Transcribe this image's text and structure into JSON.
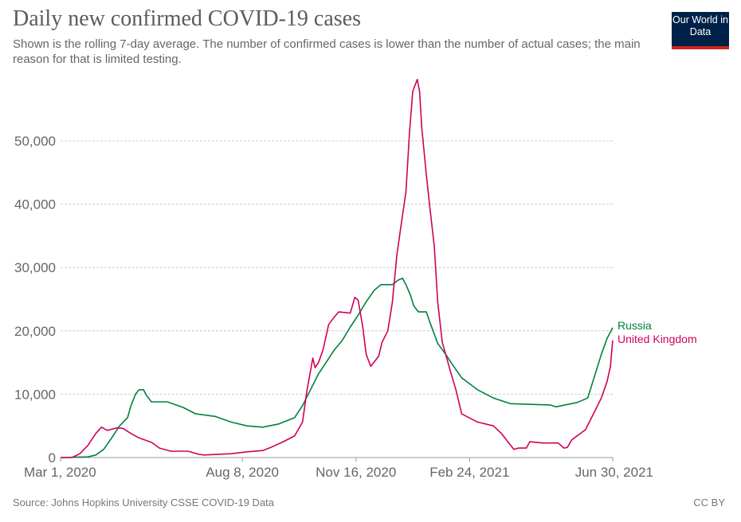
{
  "header": {
    "title": "Daily new confirmed COVID-19 cases",
    "subtitle": "Shown is the rolling 7-day average. The number of confirmed cases is lower than the number of actual cases; the main reason for that is limited testing.",
    "logo_text": "Our World in Data"
  },
  "footer": {
    "source": "Source: Johns Hopkins University CSSE COVID-19 Data",
    "license": "CC BY"
  },
  "chart_data": {
    "type": "line",
    "title": "Daily new confirmed COVID-19 cases",
    "xlim": [
      "2020-03-01",
      "2021-06-30"
    ],
    "ylim": [
      0,
      60000
    ],
    "grid": true,
    "legend": "inline-right",
    "x_ticks": [
      {
        "date": "2020-03-01",
        "label": "Mar 1, 2020"
      },
      {
        "date": "2020-08-08",
        "label": "Aug 8, 2020"
      },
      {
        "date": "2020-11-16",
        "label": "Nov 16, 2020"
      },
      {
        "date": "2021-02-24",
        "label": "Feb 24, 2021"
      },
      {
        "date": "2021-06-30",
        "label": "Jun 30, 2021"
      }
    ],
    "y_ticks": [
      {
        "value": 0,
        "label": "0"
      },
      {
        "value": 10000,
        "label": "10,000"
      },
      {
        "value": 20000,
        "label": "20,000"
      },
      {
        "value": 30000,
        "label": "30,000"
      },
      {
        "value": 40000,
        "label": "40,000"
      },
      {
        "value": 50000,
        "label": "50,000"
      }
    ],
    "series": [
      {
        "name": "Russia",
        "color": "#00813b",
        "points": [
          [
            "2020-03-01",
            0
          ],
          [
            "2020-03-25",
            100
          ],
          [
            "2020-04-01",
            400
          ],
          [
            "2020-04-08",
            1300
          ],
          [
            "2020-04-15",
            3100
          ],
          [
            "2020-04-22",
            5000
          ],
          [
            "2020-04-29",
            6300
          ],
          [
            "2020-05-02",
            8200
          ],
          [
            "2020-05-06",
            10000
          ],
          [
            "2020-05-09",
            10700
          ],
          [
            "2020-05-13",
            10700
          ],
          [
            "2020-05-16",
            9700
          ],
          [
            "2020-05-20",
            8800
          ],
          [
            "2020-06-03",
            8800
          ],
          [
            "2020-06-17",
            7900
          ],
          [
            "2020-06-28",
            6900
          ],
          [
            "2020-07-15",
            6500
          ],
          [
            "2020-07-29",
            5600
          ],
          [
            "2020-08-12",
            5000
          ],
          [
            "2020-08-26",
            4800
          ],
          [
            "2020-09-09",
            5300
          ],
          [
            "2020-09-23",
            6300
          ],
          [
            "2020-09-30",
            8200
          ],
          [
            "2020-10-07",
            10700
          ],
          [
            "2020-10-14",
            13200
          ],
          [
            "2020-10-21",
            15100
          ],
          [
            "2020-10-28",
            17000
          ],
          [
            "2020-11-04",
            18500
          ],
          [
            "2020-11-11",
            20600
          ],
          [
            "2020-11-18",
            22500
          ],
          [
            "2020-11-25",
            24600
          ],
          [
            "2020-12-02",
            26400
          ],
          [
            "2020-12-08",
            27300
          ],
          [
            "2020-12-18",
            27300
          ],
          [
            "2020-12-23",
            28000
          ],
          [
            "2020-12-27",
            28300
          ],
          [
            "2020-12-30",
            27300
          ],
          [
            "2021-01-03",
            25600
          ],
          [
            "2021-01-06",
            23900
          ],
          [
            "2021-01-10",
            23000
          ],
          [
            "2021-01-17",
            23000
          ],
          [
            "2021-01-20",
            21400
          ],
          [
            "2021-01-27",
            18000
          ],
          [
            "2021-02-03",
            16300
          ],
          [
            "2021-02-10",
            14400
          ],
          [
            "2021-02-17",
            12600
          ],
          [
            "2021-03-03",
            10700
          ],
          [
            "2021-03-17",
            9400
          ],
          [
            "2021-04-01",
            8500
          ],
          [
            "2021-05-06",
            8300
          ],
          [
            "2021-05-11",
            8000
          ],
          [
            "2021-05-30",
            8700
          ],
          [
            "2021-06-08",
            9400
          ],
          [
            "2021-06-15",
            13400
          ],
          [
            "2021-06-20",
            16300
          ],
          [
            "2021-06-25",
            18800
          ],
          [
            "2021-06-30",
            20500
          ]
        ]
      },
      {
        "name": "United Kingdom",
        "color": "#d0005a",
        "points": [
          [
            "2020-03-01",
            0
          ],
          [
            "2020-03-11",
            0
          ],
          [
            "2020-03-18",
            600
          ],
          [
            "2020-03-25",
            1900
          ],
          [
            "2020-04-01",
            3800
          ],
          [
            "2020-04-06",
            4800
          ],
          [
            "2020-04-11",
            4300
          ],
          [
            "2020-04-20",
            4700
          ],
          [
            "2020-04-25",
            4600
          ],
          [
            "2020-05-02",
            3800
          ],
          [
            "2020-05-09",
            3100
          ],
          [
            "2020-05-20",
            2400
          ],
          [
            "2020-05-27",
            1500
          ],
          [
            "2020-06-06",
            1000
          ],
          [
            "2020-06-21",
            1000
          ],
          [
            "2020-07-01",
            500
          ],
          [
            "2020-07-05",
            400
          ],
          [
            "2020-07-29",
            600
          ],
          [
            "2020-08-12",
            900
          ],
          [
            "2020-08-26",
            1100
          ],
          [
            "2020-09-02",
            1600
          ],
          [
            "2020-09-13",
            2500
          ],
          [
            "2020-09-23",
            3400
          ],
          [
            "2020-09-30",
            5600
          ],
          [
            "2020-10-04",
            10700
          ],
          [
            "2020-10-09",
            15700
          ],
          [
            "2020-10-11",
            14200
          ],
          [
            "2020-10-14",
            15000
          ],
          [
            "2020-10-18",
            17000
          ],
          [
            "2020-10-23",
            21000
          ],
          [
            "2020-10-28",
            22200
          ],
          [
            "2020-11-01",
            23000
          ],
          [
            "2020-11-11",
            22800
          ],
          [
            "2020-11-15",
            25300
          ],
          [
            "2020-11-18",
            24800
          ],
          [
            "2020-11-22",
            20600
          ],
          [
            "2020-11-25",
            16300
          ],
          [
            "2020-11-29",
            14400
          ],
          [
            "2020-12-06",
            16000
          ],
          [
            "2020-12-09",
            18200
          ],
          [
            "2020-12-14",
            20000
          ],
          [
            "2020-12-18",
            24500
          ],
          [
            "2020-12-22",
            32000
          ],
          [
            "2020-12-25",
            35800
          ],
          [
            "2020-12-30",
            42000
          ],
          [
            "2021-01-02",
            51000
          ],
          [
            "2021-01-05",
            57800
          ],
          [
            "2021-01-09",
            59700
          ],
          [
            "2021-01-11",
            57800
          ],
          [
            "2021-01-13",
            52000
          ],
          [
            "2021-01-17",
            44600
          ],
          [
            "2021-01-20",
            39600
          ],
          [
            "2021-01-24",
            33300
          ],
          [
            "2021-01-27",
            24500
          ],
          [
            "2021-01-31",
            18200
          ],
          [
            "2021-02-07",
            13700
          ],
          [
            "2021-02-12",
            10700
          ],
          [
            "2021-02-17",
            6900
          ],
          [
            "2021-03-03",
            5600
          ],
          [
            "2021-03-17",
            5000
          ],
          [
            "2021-03-24",
            3800
          ],
          [
            "2021-04-04",
            1300
          ],
          [
            "2021-04-08",
            1500
          ],
          [
            "2021-04-15",
            1500
          ],
          [
            "2021-04-18",
            2500
          ],
          [
            "2021-04-29",
            2300
          ],
          [
            "2021-05-13",
            2300
          ],
          [
            "2021-05-18",
            1500
          ],
          [
            "2021-05-21",
            1600
          ],
          [
            "2021-05-25",
            2800
          ],
          [
            "2021-06-06",
            4400
          ],
          [
            "2021-06-13",
            6900
          ],
          [
            "2021-06-20",
            9400
          ],
          [
            "2021-06-25",
            12000
          ],
          [
            "2021-06-28",
            14400
          ],
          [
            "2021-06-30",
            18500
          ]
        ]
      }
    ]
  }
}
